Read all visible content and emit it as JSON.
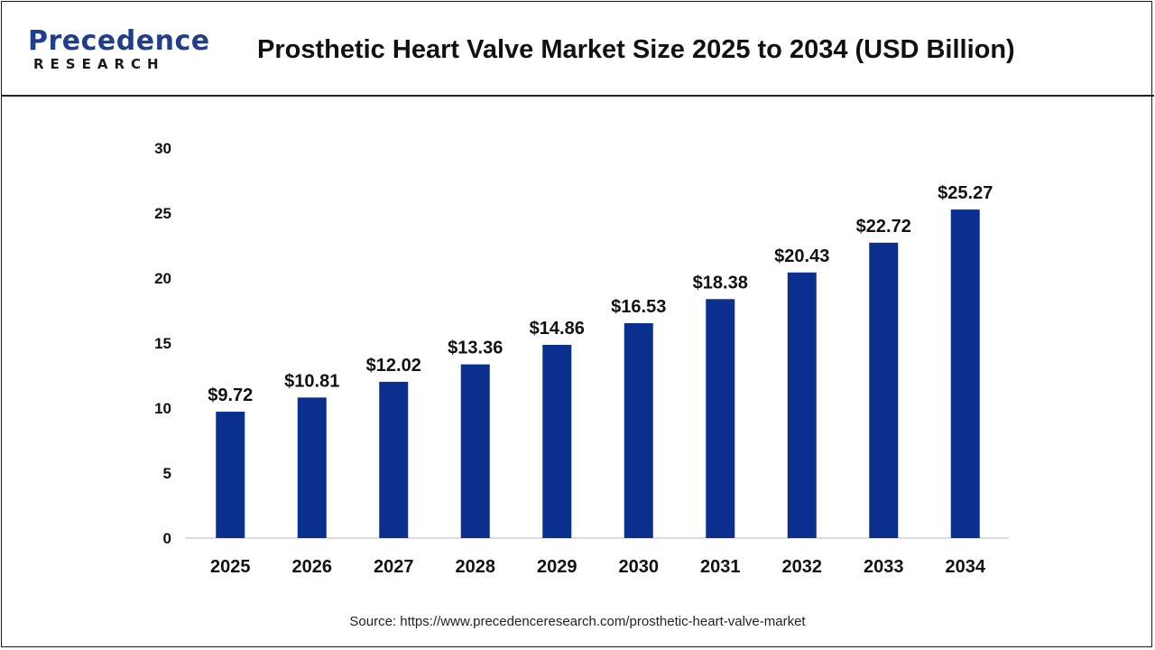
{
  "brand": {
    "logo_word": "Precedence",
    "logo_sub": "RESEARCH",
    "primary_color": "#1f3f8c"
  },
  "source_text": "Source: https://www.precedenceresearch.com/prosthetic-heart-valve-market",
  "chart_data": {
    "type": "bar",
    "title": "Prosthetic Heart Valve Market Size 2025 to 2034 (USD Billion)",
    "xlabel": "",
    "ylabel": "",
    "categories": [
      "2025",
      "2026",
      "2027",
      "2028",
      "2029",
      "2030",
      "2031",
      "2032",
      "2033",
      "2034"
    ],
    "values": [
      9.72,
      10.81,
      12.02,
      13.36,
      14.86,
      16.53,
      18.38,
      20.43,
      22.72,
      25.27
    ],
    "value_labels": [
      "$9.72",
      "$10.81",
      "$12.02",
      "$13.36",
      "$14.86",
      "$16.53",
      "$18.38",
      "$20.43",
      "$22.72",
      "$25.27"
    ],
    "ylim": [
      0,
      30
    ],
    "yticks": [
      0,
      5,
      10,
      15,
      20,
      25,
      30
    ],
    "grid": false,
    "bar_color": "#0a2f8f"
  }
}
